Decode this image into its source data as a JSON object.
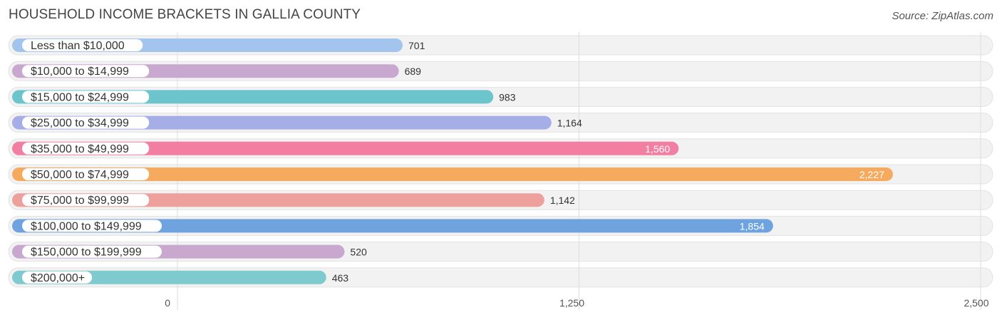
{
  "header": {
    "title": "HOUSEHOLD INCOME BRACKETS IN GALLIA COUNTY",
    "source": "Source: ZipAtlas.com"
  },
  "chart_data": {
    "type": "bar",
    "orientation": "horizontal",
    "title": "HOUSEHOLD INCOME BRACKETS IN GALLIA COUNTY",
    "categories": [
      "Less than $10,000",
      "$10,000 to $14,999",
      "$15,000 to $24,999",
      "$25,000 to $34,999",
      "$35,000 to $49,999",
      "$50,000 to $74,999",
      "$75,000 to $99,999",
      "$100,000 to $149,999",
      "$150,000 to $199,999",
      "$200,000+"
    ],
    "values": [
      701,
      689,
      983,
      1164,
      1560,
      2227,
      1142,
      1854,
      520,
      463
    ],
    "value_labels": [
      "701",
      "689",
      "983",
      "1,164",
      "1,560",
      "2,227",
      "1,142",
      "1,854",
      "520",
      "463"
    ],
    "colors": [
      "#a3c4ec",
      "#c9a8d0",
      "#6cc4cc",
      "#a6aee8",
      "#f27fa3",
      "#f6aa5e",
      "#eea09c",
      "#6fa3e0",
      "#c9a8d0",
      "#7fcacf"
    ],
    "xlim": [
      0,
      2500
    ],
    "xticks": [
      "0",
      "1,250",
      "2,500"
    ],
    "grid": true,
    "legend": "none"
  }
}
